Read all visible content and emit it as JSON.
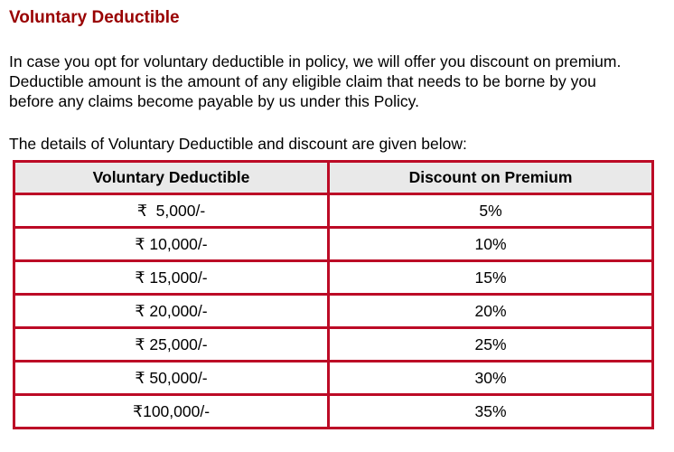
{
  "page": {
    "title": "Voluntary Deductible",
    "intro": "In case you opt for voluntary deductible in policy, we will offer you discount on premium. Deductible amount is the amount of any eligible claim that needs to be borne by you before any claims become payable by us under this Policy.",
    "caption": "The details of Voluntary Deductible and discount are given below:"
  },
  "colors": {
    "title_text": "#990000",
    "body_text": "#000000",
    "table_border": "#BC0B26",
    "header_bg": "#E9E9E9"
  },
  "table": {
    "columns": [
      "Voluntary Deductible",
      "Discount on Premium"
    ],
    "rows": [
      [
        "₹  5,000/-",
        "5%"
      ],
      [
        "₹ 10,000/-",
        "10%"
      ],
      [
        "₹ 15,000/-",
        "15%"
      ],
      [
        "₹ 20,000/-",
        "20%"
      ],
      [
        "₹ 25,000/-",
        "25%"
      ],
      [
        "₹ 50,000/-",
        "30%"
      ],
      [
        "₹100,000/-",
        "35%"
      ]
    ]
  }
}
